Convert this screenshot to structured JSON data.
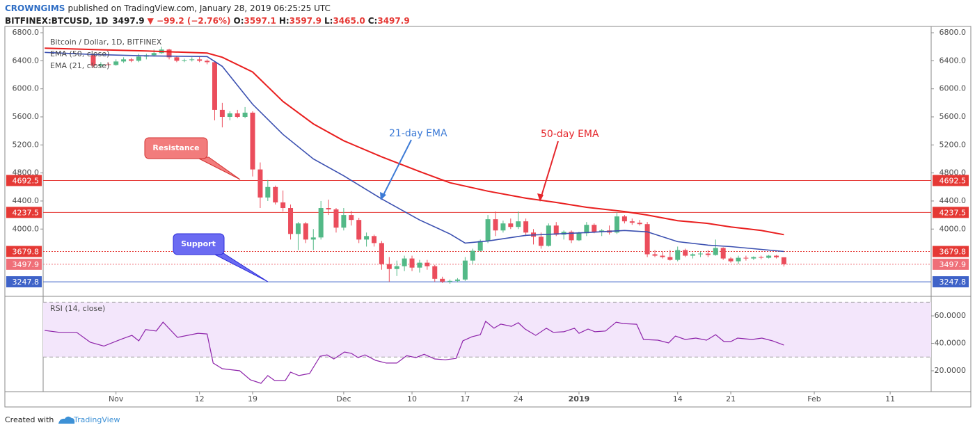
{
  "header": {
    "author": "CROWNGIMS",
    "published": "published on TradingView.com, January 28, 2019 06:25:25 UTC",
    "symbol": "BITFINEX:BTCUSD, 1D",
    "last": "3497.9",
    "change": "▼ −99.2 (−2.76%)",
    "ohlc": [
      {
        "label": "O:",
        "value": "3597.1"
      },
      {
        "label": "H:",
        "value": "3597.9"
      },
      {
        "label": "L:",
        "value": "3465.0"
      },
      {
        "label": "C:",
        "value": "3497.9"
      }
    ]
  },
  "footer": {
    "text": "Created with",
    "brand": "TradingView"
  },
  "annotations": [
    {
      "text": "21-day EMA",
      "color": "#3d7bd6"
    },
    {
      "text": "50-day EMA",
      "color": "#e5262b"
    },
    {
      "text": "Resistance"
    },
    {
      "text": "Support"
    }
  ],
  "chart_data": [
    {
      "type": "candlestick",
      "title": "Bitcoin / Dollar, 1D, BITFINEX",
      "up_color": "#53b987",
      "down_color": "#eb4d5c",
      "xlim": [
        -9.6,
        107.4
      ],
      "ylim": [
        3050,
        6870
      ],
      "yticks": [
        {
          "value": 6800,
          "label": "6800.0"
        },
        {
          "value": 6400,
          "label": "6400.0"
        },
        {
          "value": 6000,
          "label": "6000.0"
        },
        {
          "value": 5600,
          "label": "5600.0"
        },
        {
          "value": 5200,
          "label": "5200.0"
        },
        {
          "value": 4800,
          "label": "4800.0"
        },
        {
          "value": 4400,
          "label": "4400.0"
        },
        {
          "value": 4000,
          "label": "4000.0"
        }
      ],
      "x": [
        -3,
        -2,
        -1,
        0,
        1,
        2,
        3,
        4,
        5,
        6,
        7,
        8,
        9,
        10,
        11,
        12,
        13,
        14,
        15,
        16,
        17,
        18,
        19,
        20,
        21,
        22,
        23,
        24,
        25,
        26,
        27,
        28,
        29,
        30,
        31,
        32,
        33,
        34,
        35,
        36,
        37,
        38,
        39,
        40,
        41,
        42,
        43,
        44,
        45,
        46,
        47,
        48,
        49,
        50,
        51,
        52,
        53,
        54,
        55,
        56,
        57,
        58,
        59,
        60,
        61,
        62,
        63,
        64,
        65,
        66,
        67,
        68,
        69,
        70,
        71,
        72,
        73,
        74,
        75,
        76,
        77,
        78,
        79,
        80,
        81,
        82,
        83,
        84,
        85,
        86,
        87,
        88
      ],
      "open": [
        6480,
        6330,
        6350,
        6340,
        6390,
        6420,
        6400,
        6460,
        6480,
        6510,
        6560,
        6450,
        6400,
        6410,
        6420,
        6400,
        6380,
        5700,
        5600,
        5650,
        5600,
        5660,
        4850,
        4450,
        4600,
        4380,
        4300,
        3930,
        4080,
        3850,
        3880,
        4300,
        4280,
        4020,
        4200,
        4130,
        3850,
        3900,
        3800,
        3500,
        3430,
        3470,
        3580,
        3450,
        3520,
        3470,
        3290,
        3250,
        3260,
        3280,
        3550,
        3690,
        3830,
        4140,
        3980,
        4080,
        4030,
        4110,
        3950,
        3890,
        3760,
        4050,
        3920,
        3960,
        3840,
        3940,
        4060,
        3960,
        3980,
        3950,
        4180,
        4110,
        4090,
        4070,
        3640,
        3620,
        3600,
        3560,
        3700,
        3620,
        3640,
        3650,
        3630,
        3730,
        3580,
        3540,
        3590,
        3580,
        3600,
        3590,
        3620,
        3597.1
      ],
      "high": [
        6500,
        6380,
        6380,
        6420,
        6450,
        6440,
        6500,
        6500,
        6560,
        6600,
        6570,
        6470,
        6430,
        6450,
        6460,
        6420,
        6400,
        5800,
        5680,
        5700,
        5740,
        5680,
        4950,
        4700,
        4620,
        4550,
        4350,
        4100,
        4100,
        4000,
        4400,
        4420,
        4300,
        4300,
        4260,
        4160,
        3950,
        3920,
        3830,
        3600,
        3550,
        3620,
        3620,
        3560,
        3560,
        3490,
        3320,
        3280,
        3300,
        3600,
        3720,
        3850,
        4200,
        4250,
        4120,
        4150,
        4250,
        4150,
        4000,
        3950,
        4080,
        4100,
        3980,
        3980,
        3960,
        4100,
        4080,
        4000,
        4050,
        4240,
        4200,
        4150,
        4130,
        4100,
        3700,
        3680,
        3700,
        3750,
        3720,
        3660,
        3680,
        3700,
        3850,
        3740,
        3600,
        3620,
        3620,
        3610,
        3620,
        3630,
        3630,
        3597.9
      ],
      "low": [
        6300,
        6300,
        6320,
        6330,
        6370,
        6380,
        6380,
        6420,
        6460,
        6500,
        6420,
        6380,
        6380,
        6390,
        6380,
        6350,
        5550,
        5450,
        5550,
        5580,
        5580,
        4750,
        4300,
        4400,
        4350,
        4250,
        3850,
        3700,
        3800,
        3700,
        3850,
        4200,
        3950,
        3980,
        4050,
        3800,
        3750,
        3750,
        3420,
        3250,
        3330,
        3400,
        3400,
        3380,
        3420,
        3250,
        3230,
        3220,
        3240,
        3260,
        3500,
        3680,
        3800,
        3900,
        3950,
        4000,
        4000,
        3900,
        3780,
        3720,
        3750,
        3900,
        3850,
        3800,
        3830,
        3900,
        3940,
        3900,
        3920,
        3930,
        4080,
        4060,
        4050,
        3600,
        3600,
        3580,
        3550,
        3540,
        3600,
        3580,
        3600,
        3600,
        3620,
        3560,
        3520,
        3500,
        3550,
        3560,
        3570,
        3580,
        3580,
        3465
      ],
      "close": [
        6330,
        6350,
        6340,
        6390,
        6420,
        6400,
        6460,
        6480,
        6510,
        6560,
        6450,
        6400,
        6410,
        6420,
        6400,
        6380,
        5700,
        5600,
        5650,
        5600,
        5660,
        4850,
        4450,
        4600,
        4380,
        4300,
        3930,
        4080,
        3850,
        3880,
        4300,
        4280,
        4020,
        4200,
        4130,
        3850,
        3900,
        3800,
        3500,
        3430,
        3470,
        3580,
        3450,
        3520,
        3470,
        3290,
        3250,
        3260,
        3280,
        3550,
        3690,
        3830,
        4140,
        3980,
        4080,
        4030,
        4110,
        3950,
        3890,
        3760,
        4050,
        3920,
        3960,
        3840,
        3940,
        4060,
        3960,
        3980,
        3950,
        4180,
        4110,
        4090,
        4070,
        3640,
        3620,
        3600,
        3560,
        3700,
        3620,
        3640,
        3650,
        3630,
        3730,
        3580,
        3540,
        3590,
        3580,
        3600,
        3590,
        3620,
        3597.1,
        3497.9
      ],
      "series": [
        {
          "name": "EMA (50, close)",
          "color": "#e91e1e",
          "x": [
            -9.4,
            -3,
            4,
            12,
            14,
            18,
            22,
            26,
            30,
            35,
            40,
            44,
            49,
            54,
            58,
            62,
            67,
            70,
            74,
            78,
            81,
            85,
            88
          ],
          "values": [
            6580,
            6560,
            6540,
            6510,
            6450,
            6240,
            5820,
            5500,
            5260,
            5030,
            4820,
            4660,
            4540,
            4440,
            4380,
            4310,
            4250,
            4200,
            4120,
            4080,
            4030,
            3980,
            3920
          ]
        },
        {
          "name": "EMA (21, close)",
          "color": "#3a4fb0",
          "x": [
            -9.4,
            -3,
            4,
            12,
            14,
            18,
            22,
            26,
            30,
            35,
            40,
            44,
            46,
            49,
            54,
            58,
            62,
            67,
            70,
            74,
            78,
            81,
            85,
            88
          ],
          "values": [
            6520,
            6490,
            6470,
            6460,
            6320,
            5780,
            5350,
            5000,
            4760,
            4430,
            4130,
            3930,
            3800,
            3830,
            3910,
            3930,
            3950,
            3980,
            3960,
            3820,
            3770,
            3750,
            3710,
            3679.8
          ]
        }
      ],
      "levels": [
        {
          "value": 4692.5,
          "color": "#e53935",
          "style": "solid"
        },
        {
          "value": 4237.5,
          "color": "#e53935",
          "style": "solid"
        },
        {
          "value": 3679.8,
          "color": "#e53935",
          "style": "dotted"
        },
        {
          "value": 3497.9,
          "color": "#ef6f78",
          "style": "dotted"
        },
        {
          "value": 3247.8,
          "color": "#3f63c8",
          "style": "solid"
        }
      ]
    },
    {
      "type": "line",
      "title": "RSI (14, close)",
      "color": "#8e24aa",
      "band": [
        30,
        70
      ],
      "band_color": "#f3e6fb",
      "xlim": [
        -9.6,
        107.4
      ],
      "ylim": [
        4.8,
        73.2
      ],
      "yticks": [
        {
          "value": 60,
          "label": "60.0000"
        },
        {
          "value": 40,
          "label": "40.0000"
        },
        {
          "value": 20,
          "label": "20.0000"
        }
      ],
      "xticks": [
        {
          "value": 0,
          "label": "Nov"
        },
        {
          "value": 11,
          "label": "12"
        },
        {
          "value": 18,
          "label": "19"
        },
        {
          "value": 30,
          "label": "Dec"
        },
        {
          "value": 39,
          "label": "10"
        },
        {
          "value": 46,
          "label": "17"
        },
        {
          "value": 53,
          "label": "24"
        },
        {
          "value": 61,
          "label": "2019",
          "bold": true
        },
        {
          "value": 74,
          "label": "14"
        },
        {
          "value": 81,
          "label": "21"
        },
        {
          "value": 92,
          "label": "Feb"
        },
        {
          "value": 102,
          "label": "11"
        }
      ],
      "x": [
        -9.4,
        -7.5,
        -5.2,
        -3.4,
        -1.6,
        0.7,
        2.1,
        3.0,
        3.9,
        5.3,
        6.2,
        8.1,
        10.8,
        12.0,
        12.8,
        14.0,
        16.3,
        17.7,
        19.1,
        20.0,
        20.9,
        22.3,
        23.0,
        24.1,
        25.5,
        26.9,
        27.8,
        28.7,
        30.1,
        31.0,
        31.9,
        32.8,
        34.2,
        35.6,
        37.0,
        38.3,
        39.5,
        40.6,
        42.0,
        43.4,
        44.8,
        45.7,
        46.9,
        48.0,
        48.7,
        49.8,
        50.7,
        52.1,
        53.0,
        53.9,
        55.3,
        56.7,
        57.6,
        59.0,
        60.4,
        61.0,
        62.2,
        63.1,
        64.5,
        65.9,
        66.8,
        68.6,
        69.5,
        71.4,
        72.8,
        73.7,
        75.0,
        76.4,
        77.8,
        79.0,
        80.1,
        81.0,
        81.9,
        83.8,
        85.1,
        86.5,
        88.0
      ],
      "values": [
        49.4,
        48,
        48,
        40.8,
        38,
        43,
        45.8,
        41.8,
        50,
        49,
        55.4,
        44.3,
        47.3,
        46.8,
        25.6,
        21.5,
        20,
        13.4,
        10.9,
        16.5,
        12.9,
        12.9,
        19,
        16.5,
        18,
        30.6,
        31.6,
        28.6,
        33.7,
        32.7,
        29.6,
        31.6,
        27.6,
        25.6,
        25.6,
        31,
        29.6,
        32,
        28.6,
        28,
        29,
        41.8,
        44.8,
        46.3,
        56,
        51,
        54,
        52.4,
        55,
        50.4,
        45.8,
        51,
        48,
        48.4,
        51,
        47.3,
        50.4,
        48.4,
        49,
        55.4,
        54.4,
        53.9,
        42.8,
        42.3,
        40.3,
        45.3,
        42.8,
        43.8,
        42.3,
        46.3,
        41.3,
        41.3,
        43.8,
        42.8,
        43.8,
        41.8,
        38.7
      ]
    }
  ]
}
